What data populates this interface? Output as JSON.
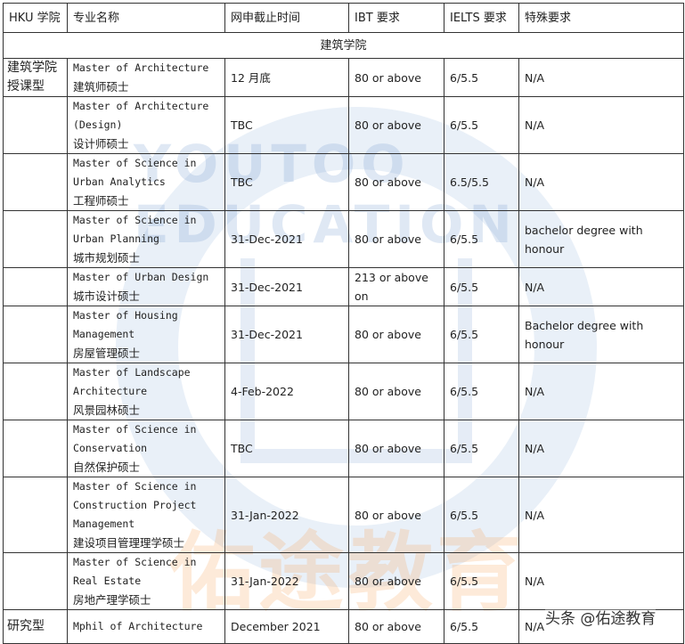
{
  "headers": [
    "HKU 学院",
    "专业名称",
    "网申截止时间",
    "IBT 要求",
    "IELTS 要求",
    "特殊要求"
  ],
  "section_title": "建筑学院",
  "rows": [
    {
      "school": "建筑学院授课型",
      "name_en": "Master of Architecture",
      "name_cn": "建筑师硕士",
      "deadline": "12 月底",
      "ibt": "80 or above",
      "ielts": "6/5.5",
      "special": "N/A",
      "h": 42
    },
    {
      "school": "",
      "name_en": "Master of Architecture (Design)",
      "name_cn": "设计师硕士",
      "deadline": "TBC",
      "ibt": "80 or above",
      "ielts": "6/5.5",
      "special": "N/A",
      "h": 63
    },
    {
      "school": "",
      "name_en": "Master of Science in Urban Analytics",
      "name_cn": "工程师硕士",
      "deadline": "TBC",
      "ibt": "80 or above",
      "ielts": "6.5/5.5",
      "special": "N/A",
      "h": 63
    },
    {
      "school": "",
      "name_en": "Master of Science in Urban Planning",
      "name_cn": "城市规划硕士",
      "deadline": "31-Dec-2021",
      "ibt": "80 or above",
      "ielts": "6/5.5",
      "special": "bachelor degree with honour",
      "h": 63
    },
    {
      "school": "",
      "name_en": "Master of Urban Design",
      "name_cn": "城市设计硕士",
      "deadline": "31-Dec-2021",
      "ibt": "213 or above on",
      "ielts": "6/5.5",
      "special": "N/A",
      "h": 43
    },
    {
      "school": "",
      "name_en": "Master of Housing Management",
      "name_cn": "房屋管理硕士",
      "deadline": "31-Dec-2021",
      "ibt": "80 or above",
      "ielts": "6/5.5",
      "special": "Bachelor degree with honour",
      "h": 63
    },
    {
      "school": "",
      "name_en": "Master of Landscape Architecture",
      "name_cn": "风景园林硕士",
      "deadline": "4-Feb-2022",
      "ibt": "80 or above",
      "ielts": "6/5.5",
      "special": "N/A",
      "h": 63
    },
    {
      "school": "",
      "name_en": "Master of Science in Conservation",
      "name_cn": "自然保护硕士",
      "deadline": "TBC",
      "ibt": "80 or above",
      "ielts": "6/5.5",
      "special": "N/A",
      "h": 63
    },
    {
      "school": "",
      "name_en": "Master of Science in Construction Project Management",
      "name_cn": "建设项目管理理学硕士",
      "deadline": "31-Jan-2022",
      "ibt": "80 or above",
      "ielts": "6/5.5",
      "special": "N/A",
      "h": 83
    },
    {
      "school": "",
      "name_en": "Master of Science in Real Estate",
      "name_cn": "房地产理学硕士",
      "deadline": "31-Jan-2022",
      "ibt": "80 or above",
      "ielts": "6/5.5",
      "special": "N/A",
      "h": 63
    },
    {
      "school": "研究型",
      "name_en": "Mphil of Architecture",
      "name_cn": "",
      "deadline": "December 2021",
      "ibt": "80 or above",
      "ielts": "6/5.5",
      "special": "N/A",
      "h": 38
    }
  ],
  "watermark": {
    "text_en": "YOUTOO EDUCATION",
    "text_cn": "佑途教育",
    "colors": {
      "blue": "#7aa0d2",
      "orange": "#f5a050"
    }
  },
  "footer_mark": "头条 @佑途教育"
}
